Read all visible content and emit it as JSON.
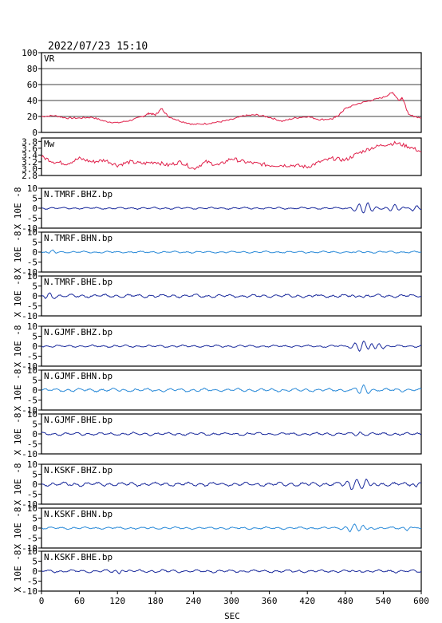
{
  "chart_data": {
    "type": "line",
    "timestamp": "2022/07/23  15:10",
    "xlabel": "SEC",
    "x_ticks": [
      0,
      60,
      120,
      180,
      240,
      300,
      360,
      420,
      480,
      540,
      600
    ],
    "xlim": [
      0,
      600
    ],
    "unit_label": "X 10E -8",
    "panels": [
      {
        "name": "VR",
        "label": "VR",
        "ylim": [
          0,
          100
        ],
        "y_ticks": [
          "0",
          "20",
          "40",
          "60",
          "80",
          "100"
        ],
        "y_tick_values": [
          0,
          20,
          40,
          60,
          80,
          100
        ],
        "grid": true,
        "color": "#e0204a",
        "series": [
          [
            0,
            20
          ],
          [
            20,
            21
          ],
          [
            40,
            18
          ],
          [
            60,
            18
          ],
          [
            80,
            19
          ],
          [
            100,
            14
          ],
          [
            120,
            12
          ],
          [
            140,
            15
          ],
          [
            160,
            20
          ],
          [
            170,
            24
          ],
          [
            180,
            22
          ],
          [
            190,
            30
          ],
          [
            200,
            20
          ],
          [
            220,
            14
          ],
          [
            240,
            10
          ],
          [
            260,
            11
          ],
          [
            280,
            13
          ],
          [
            300,
            16
          ],
          [
            320,
            21
          ],
          [
            340,
            22
          ],
          [
            360,
            19
          ],
          [
            380,
            14
          ],
          [
            400,
            18
          ],
          [
            420,
            20
          ],
          [
            440,
            16
          ],
          [
            460,
            17
          ],
          [
            470,
            22
          ],
          [
            480,
            30
          ],
          [
            500,
            36
          ],
          [
            520,
            40
          ],
          [
            540,
            44
          ],
          [
            555,
            50
          ],
          [
            565,
            40
          ],
          [
            570,
            44
          ],
          [
            580,
            22
          ],
          [
            600,
            18
          ]
        ]
      },
      {
        "name": "Mw",
        "label": "Mw",
        "ylim": [
          2.8,
          3.9
        ],
        "y_ticks": [
          "2.8",
          "3.0",
          "3.2",
          "3.4",
          "3.6",
          "3.8"
        ],
        "y_tick_values": [
          2.8,
          3.0,
          3.2,
          3.4,
          3.6,
          3.8
        ],
        "grid": false,
        "color": "#e0204a",
        "series": [
          [
            0,
            3.35
          ],
          [
            20,
            3.2
          ],
          [
            40,
            3.15
          ],
          [
            60,
            3.3
          ],
          [
            80,
            3.2
          ],
          [
            100,
            3.25
          ],
          [
            120,
            3.1
          ],
          [
            140,
            3.2
          ],
          [
            160,
            3.15
          ],
          [
            180,
            3.2
          ],
          [
            200,
            3.1
          ],
          [
            220,
            3.2
          ],
          [
            240,
            3.0
          ],
          [
            260,
            3.2
          ],
          [
            280,
            3.1
          ],
          [
            300,
            3.3
          ],
          [
            320,
            3.2
          ],
          [
            340,
            3.15
          ],
          [
            360,
            3.1
          ],
          [
            380,
            3.1
          ],
          [
            400,
            3.1
          ],
          [
            420,
            3.05
          ],
          [
            440,
            3.2
          ],
          [
            460,
            3.3
          ],
          [
            480,
            3.25
          ],
          [
            500,
            3.45
          ],
          [
            520,
            3.6
          ],
          [
            540,
            3.7
          ],
          [
            560,
            3.75
          ],
          [
            580,
            3.65
          ],
          [
            600,
            3.5
          ]
        ]
      },
      {
        "name": "N.TMRF.BHZ.bp",
        "label": "N.TMRF.BHZ.bp",
        "ylim": [
          -10,
          10
        ],
        "color": "#1a2a9c",
        "noise": 0.3,
        "events": [
          [
            512,
            2.5,
            0.9
          ],
          [
            555,
            1.6,
            0.6
          ],
          [
            590,
            1.2,
            0.5
          ]
        ]
      },
      {
        "name": "N.TMRF.BHN.bp",
        "label": "N.TMRF.BHN.bp",
        "ylim": [
          -10,
          10
        ],
        "color": "#2a8ad8",
        "noise": 0.3,
        "events": [
          [
            15,
            1.0,
            0.4
          ],
          [
            500,
            0.6,
            0.3
          ]
        ]
      },
      {
        "name": "N.TMRF.BHE.bp",
        "label": "N.TMRF.BHE.bp",
        "ylim": [
          -10,
          10
        ],
        "color": "#1a2a9c",
        "noise": 0.5,
        "events": [
          [
            10,
            1.5,
            0.5
          ],
          [
            430,
            0.8,
            0.4
          ],
          [
            500,
            1.0,
            0.5
          ]
        ]
      },
      {
        "name": "N.GJMF.BHZ.bp",
        "label": "N.GJMF.BHZ.bp",
        "ylim": [
          -10,
          10
        ],
        "color": "#1a2a9c",
        "noise": 0.35,
        "events": [
          [
            506,
            2.3,
            0.9
          ],
          [
            530,
            1.6,
            0.6
          ]
        ]
      },
      {
        "name": "N.GJMF.BHN.bp",
        "label": "N.GJMF.BHN.bp",
        "ylim": [
          -10,
          10
        ],
        "color": "#2a8ad8",
        "noise": 0.5,
        "events": [
          [
            506,
            2.0,
            0.6
          ]
        ]
      },
      {
        "name": "N.GJMF.BHE.bp",
        "label": "N.GJMF.BHE.bp",
        "ylim": [
          -10,
          10
        ],
        "color": "#1a2a9c",
        "noise": 0.45,
        "events": [
          [
            500,
            0.8,
            0.4
          ]
        ]
      },
      {
        "name": "N.KSKF.BHZ.bp",
        "label": "N.KSKF.BHZ.bp",
        "ylim": [
          -10,
          10
        ],
        "color": "#1a2a9c",
        "noise": 0.6,
        "events": [
          [
            493,
            2.2,
            0.7
          ],
          [
            510,
            2.5,
            0.7
          ],
          [
            595,
            1.5,
            0.5
          ]
        ]
      },
      {
        "name": "N.KSKF.BHN.bp",
        "label": "N.KSKF.BHN.bp",
        "ylim": [
          -10,
          10
        ],
        "color": "#2a8ad8",
        "noise": 0.35,
        "events": [
          [
            490,
            1.5,
            0.5
          ],
          [
            505,
            1.8,
            0.6
          ],
          [
            580,
            1.0,
            0.4
          ]
        ]
      },
      {
        "name": "N.KSKF.BHE.bp",
        "label": "N.KSKF.BHE.bp",
        "ylim": [
          -10,
          10
        ],
        "color": "#1a2a9c",
        "noise": 0.45,
        "events": [
          [
            125,
            1.5,
            0.4
          ],
          [
            500,
            0.8,
            0.4
          ]
        ]
      }
    ],
    "seismo_y_ticks": [
      "-10",
      "-5",
      "0",
      "5",
      "10"
    ],
    "seismo_y_tick_values": [
      -10,
      -5,
      0,
      5,
      10
    ]
  }
}
